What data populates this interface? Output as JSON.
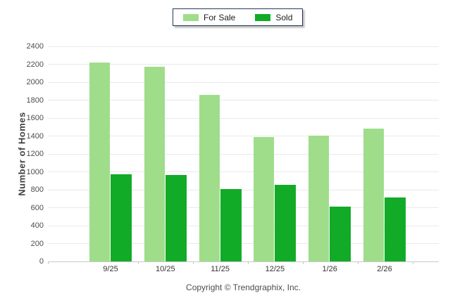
{
  "chart_data": {
    "type": "bar",
    "categories": [
      "9/25",
      "10/25",
      "11/25",
      "12/25",
      "1/26",
      "2/26"
    ],
    "series": [
      {
        "name": "For Sale",
        "color": "#9FDD8B",
        "values": [
          2220,
          2175,
          1855,
          1390,
          1405,
          1485
        ]
      },
      {
        "name": "Sold",
        "color": "#12AB28",
        "values": [
          975,
          965,
          810,
          855,
          615,
          710
        ]
      }
    ],
    "title": "",
    "xlabel": "",
    "ylabel": "Number of Homes",
    "ylim": [
      0,
      2400
    ],
    "ytick_step": 200,
    "grid": true,
    "legend_position": "top-center"
  },
  "footer": {
    "copyright": "Copyright © Trendgraphix, Inc."
  },
  "colors": {
    "grid": "#e9e9e9",
    "axis": "#c9c9c9",
    "tick_text": "#4d4d4d",
    "legend_border": "#24395B"
  }
}
